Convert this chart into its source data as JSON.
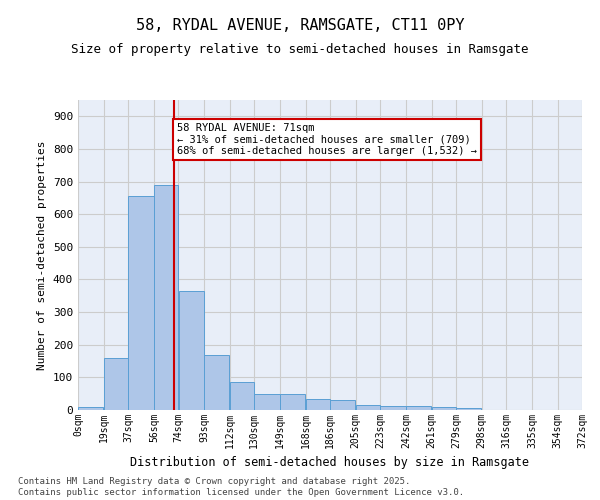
{
  "title1": "58, RYDAL AVENUE, RAMSGATE, CT11 0PY",
  "title2": "Size of property relative to semi-detached houses in Ramsgate",
  "xlabel": "Distribution of semi-detached houses by size in Ramsgate",
  "ylabel": "Number of semi-detached properties",
  "bar_color": "#aec6e8",
  "bar_edge_color": "#5a9fd4",
  "grid_color": "#cccccc",
  "annotation_box_color": "#cc0000",
  "property_line_color": "#cc0000",
  "property_value": 71,
  "annotation_text": "58 RYDAL AVENUE: 71sqm\n← 31% of semi-detached houses are smaller (709)\n68% of semi-detached houses are larger (1,532) →",
  "footer_text": "Contains HM Land Registry data © Crown copyright and database right 2025.\nContains public sector information licensed under the Open Government Licence v3.0.",
  "bin_edges": [
    0,
    19,
    37,
    56,
    74,
    93,
    112,
    130,
    149,
    168,
    186,
    205,
    223,
    242,
    261,
    279,
    298,
    316,
    335,
    354,
    372
  ],
  "bin_labels": [
    "0sqm",
    "19sqm",
    "37sqm",
    "56sqm",
    "74sqm",
    "93sqm",
    "112sqm",
    "130sqm",
    "149sqm",
    "168sqm",
    "186sqm",
    "205sqm",
    "223sqm",
    "242sqm",
    "261sqm",
    "279sqm",
    "298sqm",
    "316sqm",
    "335sqm",
    "354sqm",
    "372sqm"
  ],
  "counts": [
    8,
    160,
    655,
    690,
    365,
    170,
    85,
    48,
    48,
    35,
    30,
    15,
    13,
    13,
    10,
    5,
    0,
    0,
    0,
    0
  ],
  "ylim": [
    0,
    950
  ],
  "yticks": [
    0,
    100,
    200,
    300,
    400,
    500,
    600,
    700,
    800,
    900
  ],
  "background_color": "#e8eef8"
}
